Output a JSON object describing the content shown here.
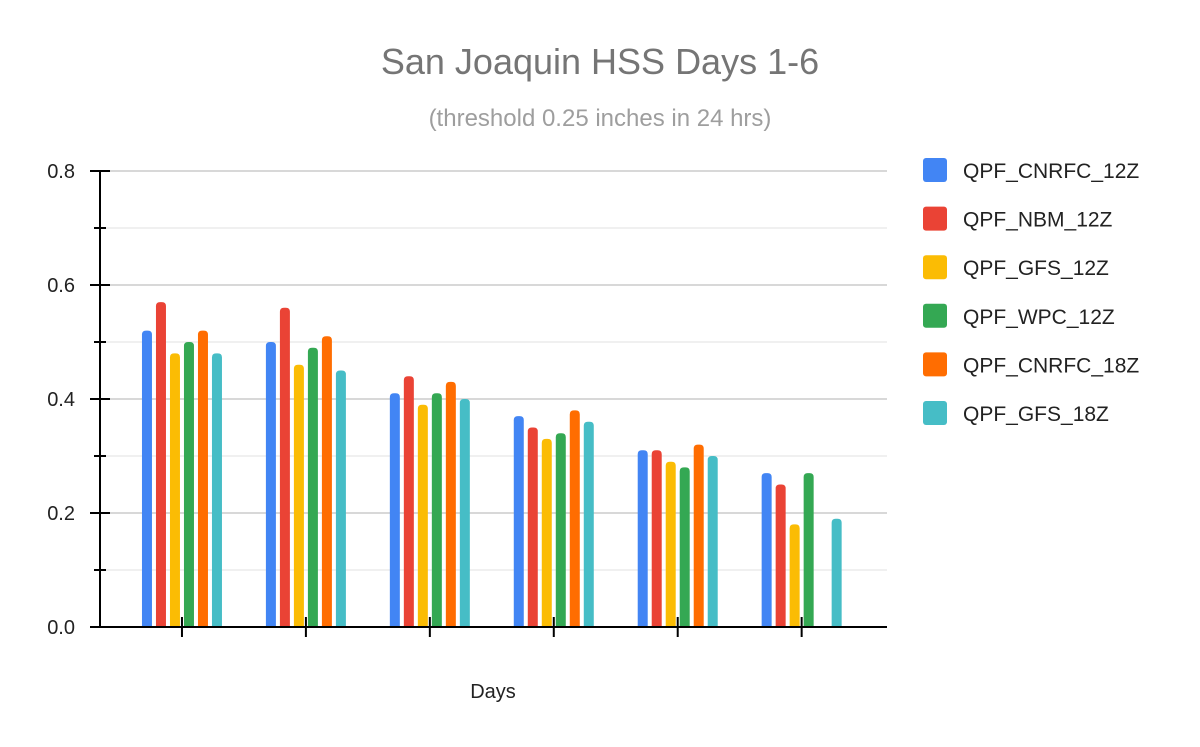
{
  "chart_data": {
    "type": "bar",
    "title": "San Joaquin HSS Days 1-6",
    "subtitle": "(threshold 0.25 inches in 24 hrs)",
    "xlabel": "Days",
    "ylabel": "",
    "ylim": [
      0,
      0.8
    ],
    "y_ticks": [
      "0.0",
      "0.2",
      "0.4",
      "0.6",
      "0.8"
    ],
    "categories": [
      "",
      "",
      "",
      "",
      "",
      ""
    ],
    "grid": true,
    "legend_position": "right",
    "series": [
      {
        "name": "QPF_CNRFC_12Z",
        "color": "#4285f4",
        "values": [
          0.52,
          0.5,
          0.41,
          0.37,
          0.31,
          0.27
        ]
      },
      {
        "name": "QPF_NBM_12Z",
        "color": "#ea4335",
        "values": [
          0.57,
          0.56,
          0.44,
          0.35,
          0.31,
          0.25
        ]
      },
      {
        "name": "QPF_GFS_12Z",
        "color": "#fbbc04",
        "values": [
          0.48,
          0.46,
          0.39,
          0.33,
          0.29,
          0.18
        ]
      },
      {
        "name": "QPF_WPC_12Z",
        "color": "#34a853",
        "values": [
          0.5,
          0.49,
          0.41,
          0.34,
          0.28,
          0.27
        ]
      },
      {
        "name": "QPF_CNRFC_18Z",
        "color": "#ff6d01",
        "values": [
          0.52,
          0.51,
          0.43,
          0.38,
          0.32,
          null
        ]
      },
      {
        "name": "QPF_GFS_18Z",
        "color": "#46bdc6",
        "values": [
          0.48,
          0.45,
          0.4,
          0.36,
          0.3,
          0.19
        ]
      }
    ]
  }
}
